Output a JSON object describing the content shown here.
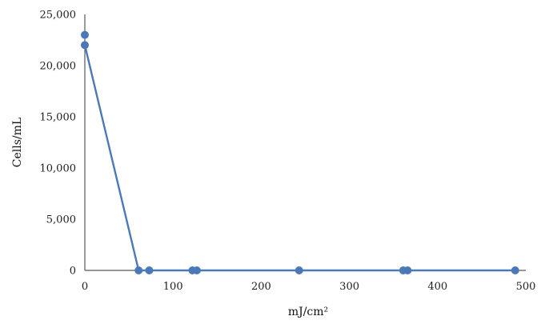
{
  "chart_data": {
    "type": "scatter",
    "title": "",
    "xlabel": "mJ/cm²",
    "ylabel": "Cells/mL",
    "xlim": [
      0,
      500
    ],
    "ylim": [
      0,
      25000
    ],
    "x_ticks": [
      0,
      100,
      200,
      300,
      400,
      500
    ],
    "x_tick_labels": [
      "0",
      "100",
      "200",
      "300",
      "400",
      "500"
    ],
    "y_ticks": [
      0,
      5000,
      10000,
      15000,
      20000,
      25000
    ],
    "y_tick_labels": [
      "0",
      "5,000",
      "10,000",
      "15,000",
      "20,000",
      "25,000"
    ],
    "grid": false,
    "series": [
      {
        "color": "#4a78b8",
        "points": [
          {
            "x": 0,
            "y": 23000
          },
          {
            "x": 0,
            "y": 22000
          },
          {
            "x": 61,
            "y": 0
          },
          {
            "x": 73,
            "y": 0
          },
          {
            "x": 122,
            "y": 0
          },
          {
            "x": 127,
            "y": 0
          },
          {
            "x": 243,
            "y": 0
          },
          {
            "x": 361,
            "y": 0
          },
          {
            "x": 366,
            "y": 0
          },
          {
            "x": 488,
            "y": 0
          }
        ],
        "line": [
          {
            "x": 0,
            "y": 22000
          },
          {
            "x": 61,
            "y": 0
          },
          {
            "x": 73,
            "y": 0
          },
          {
            "x": 122,
            "y": 0
          },
          {
            "x": 127,
            "y": 0
          },
          {
            "x": 243,
            "y": 0
          },
          {
            "x": 361,
            "y": 0
          },
          {
            "x": 366,
            "y": 0
          },
          {
            "x": 488,
            "y": 0
          }
        ]
      }
    ]
  }
}
